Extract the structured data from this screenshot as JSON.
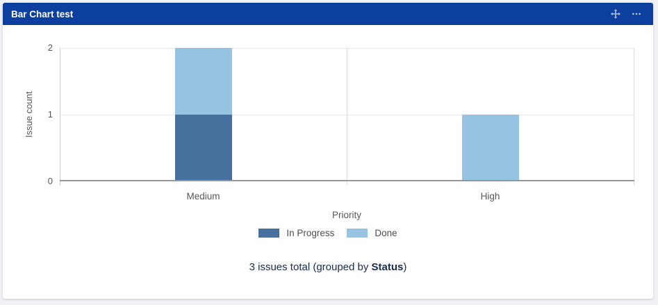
{
  "page": {
    "background_color": "#f0f1f4"
  },
  "gadget": {
    "title": "Bar Chart test",
    "header_color": "#0d3f9e"
  },
  "chart_data": {
    "type": "bar",
    "stacked": true,
    "categories": [
      "Medium",
      "High"
    ],
    "series": [
      {
        "name": "In Progress",
        "color": "#47709e",
        "values": [
          1,
          0
        ]
      },
      {
        "name": "Done",
        "color": "#96c3e2",
        "values": [
          1,
          1
        ]
      }
    ],
    "xlabel": "Priority",
    "ylabel": "Issue count",
    "ylim": [
      0,
      2
    ],
    "yticks": [
      0,
      1,
      2
    ],
    "grid": true,
    "legend_position": "bottom"
  },
  "footer": {
    "text_before": "3 issues total (grouped by ",
    "bold_text": "Status",
    "text_after": ")"
  }
}
